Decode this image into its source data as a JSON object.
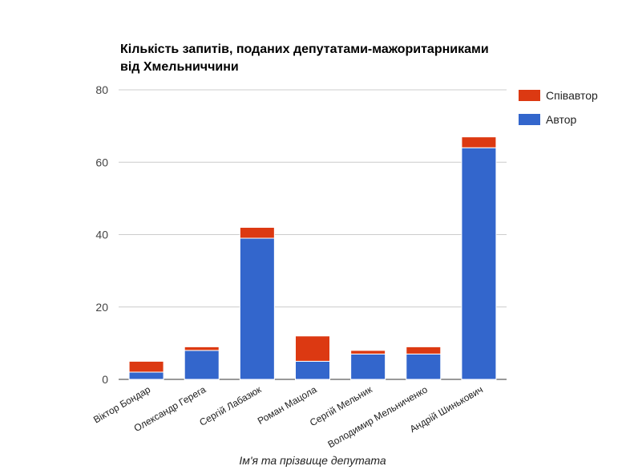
{
  "chart_data": {
    "type": "bar",
    "stacked": true,
    "title": "Кількість запитів, поданих депутатами-мажоритарниками від Хмельниччини",
    "title_lines": [
      "Кількість запитів, поданих депутатами-мажоритарниками",
      "від Хмельниччини"
    ],
    "xlabel": "Ім'я та прізвище депутата",
    "ylabel": "",
    "ylim": [
      0,
      80
    ],
    "yticks": [
      0,
      20,
      40,
      60,
      80
    ],
    "grid": true,
    "legend_position": "right",
    "categories": [
      "Віктор Бондар",
      "Олександр Герега",
      "Сергій Лабазюк",
      "Роман Мацола",
      "Сергій Мельник",
      "Володимир Мельниченко",
      "Андрій Шинькович"
    ],
    "series": [
      {
        "name": "Автор",
        "color": "#3366cc",
        "values": [
          2,
          8,
          39,
          5,
          7,
          7,
          64
        ]
      },
      {
        "name": "Співавтор",
        "color": "#dc3912",
        "values": [
          3,
          1,
          3,
          7,
          1,
          2,
          3
        ]
      }
    ],
    "legend_order": [
      "Співавтор",
      "Автор"
    ]
  }
}
